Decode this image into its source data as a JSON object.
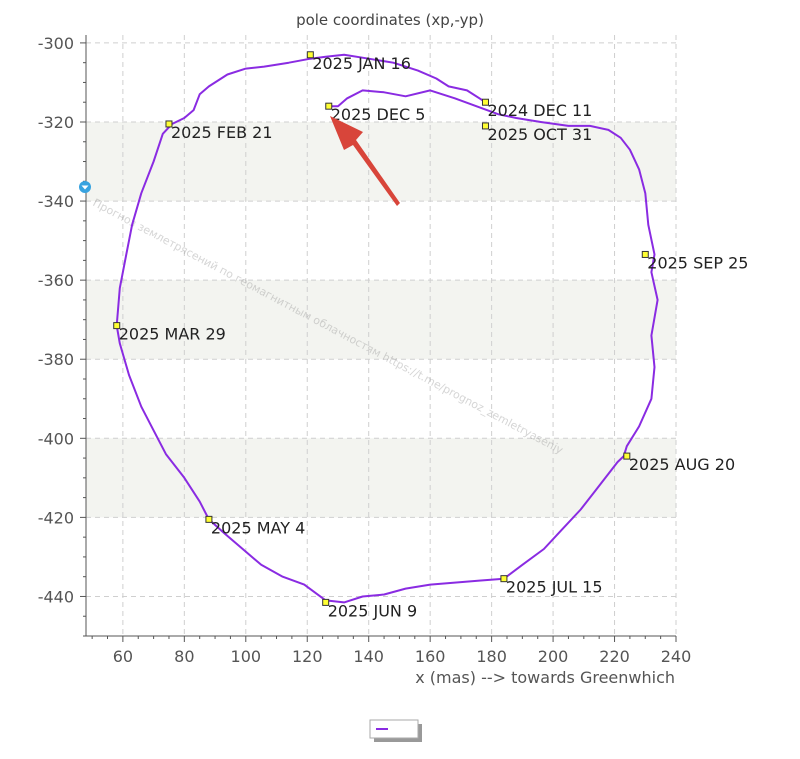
{
  "chart_data": {
    "type": "line",
    "title": "pole coordinates (xp,-yp)",
    "xlabel": "x (mas) --> towards Greenwhich",
    "ylabel": "",
    "xlim": [
      48,
      240
    ],
    "ylim": [
      -450,
      -298
    ],
    "x_ticks": [
      60,
      80,
      100,
      120,
      140,
      160,
      180,
      200,
      220,
      240
    ],
    "y_ticks": [
      -300,
      -320,
      -340,
      -360,
      -380,
      -400,
      -420,
      -440
    ],
    "grid": true,
    "line_color": "#8a2be2",
    "series": [
      {
        "name": "",
        "x": [
          178,
          172,
          166,
          162,
          156,
          148,
          140,
          132,
          126,
          121,
          114,
          106,
          100,
          94,
          88,
          85,
          83,
          80,
          76,
          73,
          70,
          66,
          63,
          61,
          59,
          58,
          59,
          62,
          66,
          70,
          74,
          80,
          85,
          88,
          93,
          99,
          105,
          112,
          119,
          126,
          132,
          138,
          145,
          152,
          160,
          168,
          176,
          184,
          190,
          197,
          203,
          209,
          214,
          218,
          221,
          223,
          224,
          228,
          232,
          233,
          232,
          234,
          232,
          233,
          231,
          230,
          228,
          225,
          222,
          218,
          212,
          205,
          196,
          188,
          182,
          175,
          168,
          160,
          152,
          145,
          138,
          133,
          130,
          127
        ],
        "y": [
          -315,
          -312,
          -311,
          -309,
          -307,
          -305,
          -304,
          -303,
          -303.5,
          -304,
          -305,
          -306,
          -306.5,
          -308,
          -311,
          -313,
          -317,
          -319,
          -320.5,
          -323,
          -330,
          -338,
          -346,
          -354,
          -362,
          -371.5,
          -376,
          -384,
          -392,
          -398,
          -404,
          -410,
          -416,
          -420.5,
          -424,
          -428,
          -432,
          -435,
          -437,
          -441,
          -441.5,
          -440,
          -439.5,
          -438,
          -437,
          -436.5,
          -436,
          -435.5,
          -432,
          -428,
          -423,
          -418,
          -413,
          -409,
          -406,
          -404.5,
          -402,
          -397,
          -390,
          -382,
          -374,
          -365,
          -358,
          -353.5,
          -346,
          -338,
          -332,
          -327,
          -324,
          -322,
          -321,
          -321,
          -320,
          -319,
          -318,
          -316,
          -314,
          -312,
          -313.5,
          -312.5,
          -312,
          -314,
          -316,
          -316
        ]
      }
    ],
    "labels": [
      {
        "text": "2024 DEC 11",
        "x": 178,
        "y": -315
      },
      {
        "text": "2025 JAN 16",
        "x": 121,
        "y": -303
      },
      {
        "text": "2025 FEB 21",
        "x": 75,
        "y": -320.5
      },
      {
        "text": "2025 MAR 29",
        "x": 58,
        "y": -371.5
      },
      {
        "text": "2025 MAY 4",
        "x": 88,
        "y": -420.5
      },
      {
        "text": "2025 JUN 9",
        "x": 126,
        "y": -441.5
      },
      {
        "text": "2025 JUL 15",
        "x": 184,
        "y": -435.5
      },
      {
        "text": "2025 AUG 20",
        "x": 224,
        "y": -404.5
      },
      {
        "text": "2025 SEP 25",
        "x": 230,
        "y": -353.5
      },
      {
        "text": "2025 OCT 31",
        "x": 178,
        "y": -321
      },
      {
        "text": "2025 DEC 5",
        "x": 127,
        "y": -316
      }
    ],
    "watermark": "Прогноз землетрясений по геомагнитным облачностям  https://t.me/prognoz_zemletryaseniy",
    "arrow_color": "#d8453a"
  }
}
